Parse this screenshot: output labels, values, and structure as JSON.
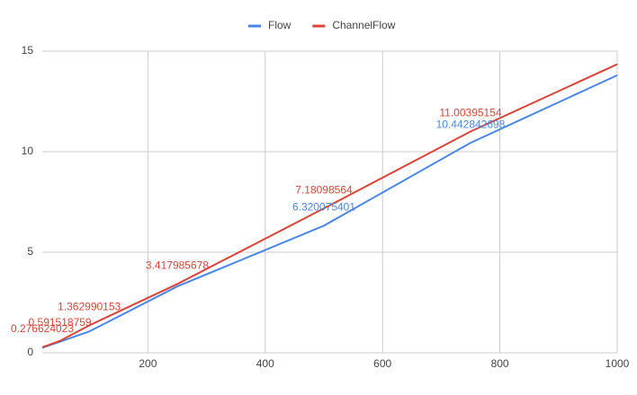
{
  "chart_data": {
    "type": "line",
    "x": [
      20,
      50,
      100,
      250,
      500,
      750,
      1000
    ],
    "series": [
      {
        "name": "Flow",
        "color": "#4a86e8",
        "values": [
          0.25,
          0.55,
          1.06,
          3.3,
          6.320075401,
          10.442842698,
          13.8
        ],
        "value_labels": [
          null,
          null,
          null,
          null,
          "6.320075401",
          "10.442842698",
          null
        ]
      },
      {
        "name": "ChannelFlow",
        "color": "#db4437",
        "values": [
          0.276624023,
          0.591518759,
          1.362990153,
          3.417985678,
          7.18098564,
          11.00395154,
          14.35
        ],
        "value_labels": [
          "0.276624023",
          "0.591518759",
          "1.362990153",
          "3.417985678",
          "7.18098564",
          "11.00395154",
          null
        ]
      }
    ],
    "xlim": [
      20,
      1000
    ],
    "xticks": [
      200,
      400,
      600,
      800,
      1000
    ],
    "ylim": [
      0,
      15
    ],
    "yticks": [
      0,
      5,
      10,
      15
    ],
    "grid": true,
    "legend": "top"
  }
}
